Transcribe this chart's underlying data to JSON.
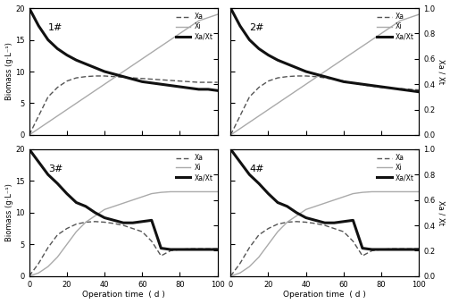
{
  "t": [
    0,
    5,
    10,
    15,
    20,
    25,
    30,
    35,
    40,
    45,
    50,
    55,
    60,
    65,
    70,
    75,
    80,
    85,
    90,
    95,
    100
  ],
  "panels": [
    {
      "label": "1#",
      "Xi": [
        0,
        1,
        2,
        3,
        4,
        5,
        6,
        7,
        8,
        9,
        10,
        11,
        12,
        13,
        14,
        15,
        16,
        17,
        18,
        18.5,
        19
      ],
      "Xa": [
        0,
        3,
        6,
        7.5,
        8.5,
        9.0,
        9.2,
        9.3,
        9.3,
        9.2,
        9.1,
        9.0,
        8.9,
        8.8,
        8.7,
        8.6,
        8.5,
        8.4,
        8.3,
        8.3,
        8.3
      ],
      "XaXt": [
        1.0,
        0.86,
        0.75,
        0.68,
        0.63,
        0.59,
        0.56,
        0.53,
        0.5,
        0.48,
        0.46,
        0.44,
        0.42,
        0.41,
        0.4,
        0.39,
        0.38,
        0.37,
        0.36,
        0.36,
        0.35
      ]
    },
    {
      "label": "2#",
      "Xi": [
        0,
        1,
        2,
        3,
        4,
        5,
        6,
        7,
        8,
        9,
        10,
        11,
        12,
        13,
        14,
        15,
        16,
        17,
        18,
        18.5,
        19
      ],
      "Xa": [
        0,
        3,
        6,
        7.5,
        8.5,
        9.0,
        9.2,
        9.3,
        9.3,
        9.2,
        9.0,
        8.8,
        8.5,
        8.2,
        7.9,
        7.7,
        7.5,
        7.4,
        7.3,
        7.2,
        7.1
      ],
      "XaXt": [
        1.0,
        0.86,
        0.75,
        0.68,
        0.63,
        0.59,
        0.56,
        0.53,
        0.5,
        0.48,
        0.46,
        0.44,
        0.42,
        0.41,
        0.4,
        0.39,
        0.38,
        0.37,
        0.36,
        0.35,
        0.34
      ]
    },
    {
      "label": "3#",
      "Xi": [
        0,
        0.5,
        1.5,
        3,
        5,
        7,
        8.5,
        9.5,
        10.5,
        11,
        11.5,
        12,
        12.5,
        13,
        13.2,
        13.3,
        13.3,
        13.3,
        13.3,
        13.3,
        13.3
      ],
      "Xa": [
        0,
        2,
        4.5,
        6.5,
        7.5,
        8.2,
        8.5,
        8.6,
        8.5,
        8.3,
        8.0,
        7.5,
        7.0,
        5.5,
        3.2,
        4.0,
        4.2,
        4.3,
        4.3,
        4.3,
        4.3
      ],
      "XaXt": [
        1.0,
        0.9,
        0.8,
        0.73,
        0.65,
        0.58,
        0.55,
        0.5,
        0.46,
        0.44,
        0.42,
        0.42,
        0.43,
        0.44,
        0.22,
        0.21,
        0.21,
        0.21,
        0.21,
        0.21,
        0.21
      ]
    },
    {
      "label": "4#",
      "Xi": [
        0,
        0.5,
        1.5,
        3,
        5,
        7,
        8.5,
        9.5,
        10.5,
        11,
        11.5,
        12,
        12.5,
        13,
        13.2,
        13.3,
        13.3,
        13.3,
        13.3,
        13.3,
        13.3
      ],
      "Xa": [
        0,
        2,
        4.5,
        6.5,
        7.5,
        8.2,
        8.5,
        8.6,
        8.5,
        8.3,
        8.0,
        7.5,
        7.0,
        5.5,
        3.2,
        4.0,
        4.2,
        4.3,
        4.3,
        4.3,
        4.3
      ],
      "XaXt": [
        1.0,
        0.9,
        0.8,
        0.73,
        0.65,
        0.58,
        0.55,
        0.5,
        0.46,
        0.44,
        0.42,
        0.42,
        0.43,
        0.44,
        0.22,
        0.21,
        0.21,
        0.21,
        0.21,
        0.21,
        0.21
      ]
    }
  ],
  "xi_color": "#aaaaaa",
  "xa_color": "#555555",
  "ratio_color": "#111111",
  "bg_color": "#ffffff",
  "xlabel": "Operation time  ( d )",
  "ylabel_left": "Biomass (g·L⁻¹)",
  "ylabel_right": "Xa / Xt",
  "ylim_left": [
    0,
    20
  ],
  "ylim_right": [
    0,
    1
  ],
  "yticks_left": [
    0,
    5,
    10,
    15,
    20
  ],
  "yticks_right": [
    0,
    0.2,
    0.4,
    0.6,
    0.8,
    1.0
  ],
  "xticks": [
    0,
    20,
    40,
    60,
    80,
    100
  ],
  "xlim": [
    0,
    100
  ],
  "legend_xa": "Xa",
  "legend_xi": "Xi",
  "legend_ratio": "Xa/Xt"
}
